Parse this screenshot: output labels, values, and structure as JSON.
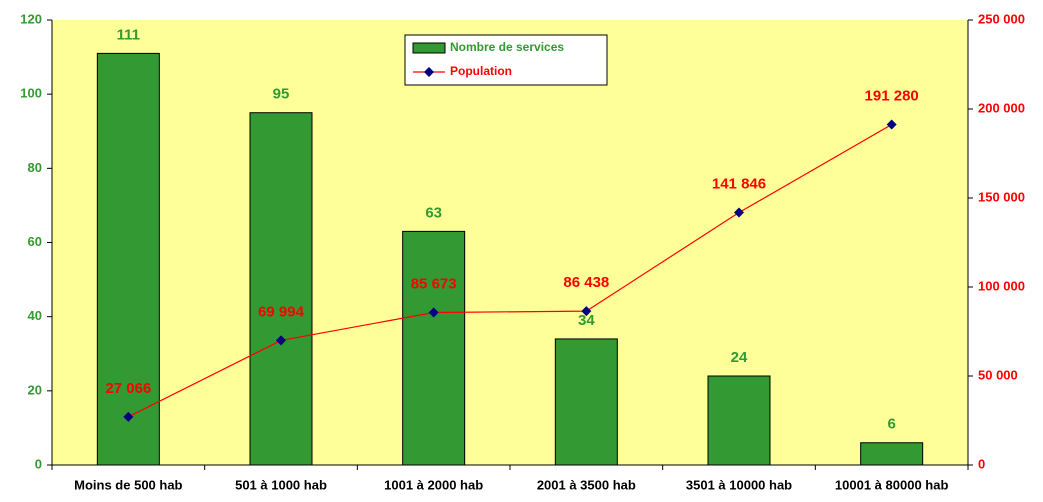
{
  "chart_data": {
    "type": "bar",
    "categories": [
      "Moins de 500 hab",
      "501 à 1000 hab",
      "1001 à 2000 hab",
      "2001 à 3500 hab",
      "3501 à 10000 hab",
      "10001 à 80000 hab"
    ],
    "series": [
      {
        "name": "Nombre de services",
        "type": "bar",
        "color": "#339933",
        "values": [
          111,
          95,
          63,
          34,
          24,
          6
        ]
      },
      {
        "name": "Population",
        "type": "line",
        "axis": "y2",
        "color": "#ff0000",
        "marker_color": "#000080",
        "values": [
          27066,
          69994,
          85673,
          86438,
          141846,
          191280
        ],
        "value_labels": [
          "27 066",
          "69 994",
          "85 673",
          "86 438",
          "141 846",
          "191 280"
        ]
      }
    ],
    "ylim": [
      0,
      120
    ],
    "yticks": [
      0,
      20,
      40,
      60,
      80,
      100,
      120
    ],
    "y2lim": [
      0,
      250000
    ],
    "y2ticks": [
      {
        "value": 0,
        "label": "0"
      },
      {
        "value": 50000,
        "label": "50 000"
      },
      {
        "value": 100000,
        "label": "100 000"
      },
      {
        "value": 150000,
        "label": "150 000"
      },
      {
        "value": 200000,
        "label": "200 000"
      },
      {
        "value": 250000,
        "label": "250 000"
      }
    ],
    "legend": "top"
  }
}
